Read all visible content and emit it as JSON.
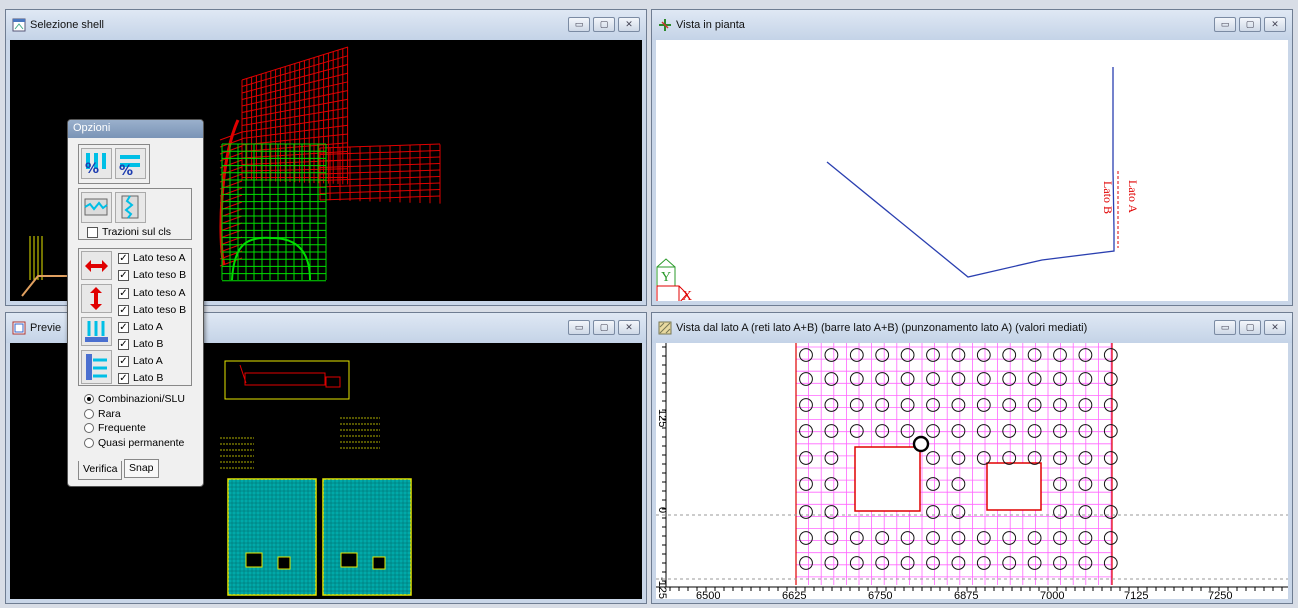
{
  "windows": {
    "shell": {
      "title": "Selezione shell"
    },
    "plan": {
      "title": "Vista in pianta",
      "label_a": "Lato A",
      "label_b": "Lato B",
      "axis_y": "Y",
      "axis_x": "X"
    },
    "preview": {
      "title": "Previe"
    },
    "side": {
      "title": "Vista dal lato A (reti lato A+B) (barre lato A+B) (punzonamento lato A) (valori mediati)",
      "ruler_x": [
        "6500",
        "6625",
        "6750",
        "6875",
        "7000",
        "7125",
        "7250"
      ],
      "ruler_y": [
        "125",
        "0",
        "-125"
      ]
    }
  },
  "window_controls": {
    "minimize": "▭",
    "maximize": "▢",
    "close": "✕"
  },
  "options": {
    "title": "Opzioni",
    "trazioni_label": "Trazioni sul cls",
    "checks": [
      {
        "label": "Lato teso A",
        "checked": true
      },
      {
        "label": "Lato teso B",
        "checked": true
      },
      {
        "label": "Lato teso A",
        "checked": true
      },
      {
        "label": "Lato teso B",
        "checked": true
      },
      {
        "label": "Lato A",
        "checked": true
      },
      {
        "label": "Lato B",
        "checked": true
      },
      {
        "label": "Lato A",
        "checked": true
      },
      {
        "label": "Lato B",
        "checked": true
      }
    ],
    "radios": [
      {
        "label": "Combinazioni/SLU",
        "selected": true
      },
      {
        "label": "Rara",
        "selected": false
      },
      {
        "label": "Frequente",
        "selected": false
      },
      {
        "label": "Quasi permanente",
        "selected": false
      }
    ],
    "tabs": [
      "Verifica",
      "Snap"
    ],
    "check_mark": "✓"
  },
  "colors": {
    "accent_red": "#e00000",
    "grid_magenta": "#ff66ff",
    "plan_blue": "#2a3fb0",
    "green_mesh": "#00dd00"
  }
}
